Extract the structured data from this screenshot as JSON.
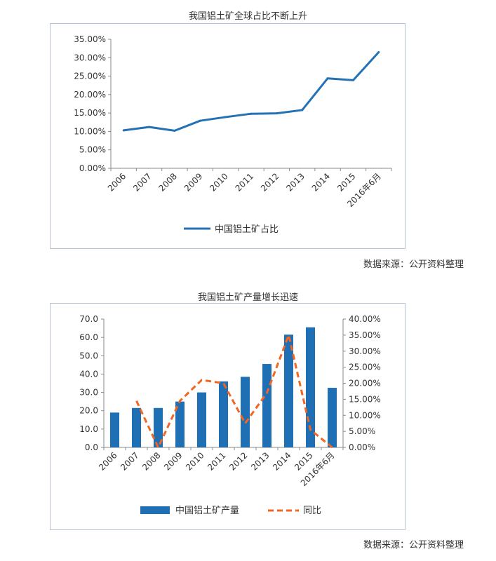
{
  "sources": [
    {
      "label": "数据来源：公开资料整理"
    },
    {
      "label": "数据来源：公开资料整理"
    }
  ],
  "chart_data": [
    {
      "type": "line",
      "title": "我国铝土矿全球占比不断上升",
      "categories": [
        "2006",
        "2007",
        "2008",
        "2009",
        "2010",
        "2011",
        "2012",
        "2013",
        "2014",
        "2015",
        "2016年6月"
      ],
      "series": [
        {
          "name": "中国铝土矿占比",
          "color": "#2471b3",
          "values": [
            0.103,
            0.112,
            0.102,
            0.129,
            0.139,
            0.148,
            0.149,
            0.158,
            0.244,
            0.239,
            0.315
          ]
        }
      ],
      "ylim": [
        0,
        0.35
      ],
      "yticks": [
        "0.00%",
        "5.00%",
        "10.00%",
        "15.00%",
        "20.00%",
        "25.00%",
        "30.00%",
        "35.00%"
      ],
      "legend": "bottom"
    },
    {
      "type": "bar",
      "title": "我国铝土矿产量增长迅速",
      "categories": [
        "2006",
        "2007",
        "2008",
        "2009",
        "2010",
        "2011",
        "2012",
        "2013",
        "2014",
        "2015",
        "2016年6月"
      ],
      "series": [
        {
          "name": "中国铝土矿产量",
          "type": "bar",
          "axis": "left",
          "color": "#1f6fb5",
          "values": [
            19.0,
            21.5,
            21.5,
            25.0,
            30.0,
            36.0,
            38.5,
            45.5,
            61.5,
            65.5,
            32.5
          ]
        },
        {
          "name": "同比",
          "type": "line",
          "axis": "right",
          "color": "#f26522",
          "values": [
            null,
            0.145,
            0.0,
            0.145,
            0.21,
            0.2,
            0.075,
            0.17,
            0.35,
            0.055,
            0.0
          ]
        }
      ],
      "ylim_left": [
        0,
        70
      ],
      "yticks_left": [
        "0.0",
        "10.0",
        "20.0",
        "30.0",
        "40.0",
        "50.0",
        "60.0",
        "70.0"
      ],
      "ylim_right": [
        0,
        0.4
      ],
      "yticks_right": [
        "0.00%",
        "5.00%",
        "10.00%",
        "15.00%",
        "20.00%",
        "25.00%",
        "30.00%",
        "35.00%",
        "40.00%"
      ],
      "legend": "bottom"
    }
  ]
}
